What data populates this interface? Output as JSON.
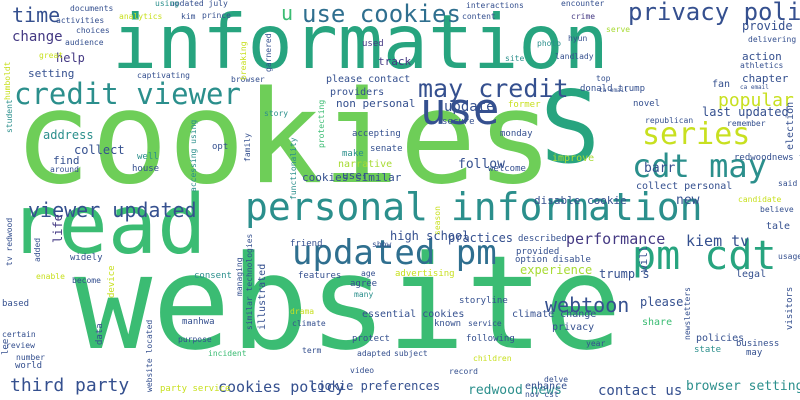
{
  "palette": {
    "background": "#ffffff",
    "colors": [
      "#3bbc73",
      "#27a47f",
      "#2b8f8c",
      "#2f6f8f",
      "#35508f",
      "#443983",
      "#481a6c",
      "#a8db34",
      "#c8e020",
      "#6ece58"
    ]
  },
  "words": [
    {
      "text": "website",
      "color": "#3bbc73"
    },
    {
      "text": "cookies",
      "color": "#6ece58"
    },
    {
      "text": "information",
      "color": "#27a47f"
    },
    {
      "text": "read",
      "color": "#3bbc73"
    },
    {
      "text": "S",
      "color": "#27a47f"
    },
    {
      "text": "personal information",
      "color": "#2b8f8c"
    },
    {
      "text": "credit viewer",
      "color": "#2b8f8c"
    },
    {
      "text": "updated pm",
      "color": "#2f6f8f"
    },
    {
      "text": "pm cdt",
      "color": "#27a47f"
    },
    {
      "text": "cdt may",
      "color": "#2b8f8c"
    },
    {
      "text": "use",
      "color": "#35508f"
    },
    {
      "text": "may credit",
      "color": "#35508f"
    },
    {
      "text": "use cookies",
      "color": "#2f6f8f"
    },
    {
      "text": "series",
      "color": "#c8e020"
    },
    {
      "text": "privacy policy",
      "color": "#35508f"
    },
    {
      "text": "viewer updated",
      "color": "#35508f"
    },
    {
      "text": "u",
      "color": "#3bbc73"
    },
    {
      "text": "time",
      "color": "#35508f"
    },
    {
      "text": "third party",
      "color": "#35508f"
    },
    {
      "text": "cookies policy",
      "color": "#35508f"
    },
    {
      "text": "webtoon",
      "color": "#35508f"
    },
    {
      "text": "popular",
      "color": "#c8e020"
    },
    {
      "text": "performance",
      "color": "#443983"
    },
    {
      "text": "kiem tv",
      "color": "#35508f"
    },
    {
      "text": "contact us",
      "color": "#35508f"
    },
    {
      "text": "browser settings",
      "color": "#2b8f8c"
    },
    {
      "text": "redwood news",
      "color": "#2b8f8c"
    },
    {
      "text": "change",
      "color": "#443983"
    },
    {
      "text": "update",
      "color": "#35508f"
    },
    {
      "text": "follow",
      "color": "#35508f"
    },
    {
      "text": "high school",
      "color": "#35508f"
    },
    {
      "text": "practices",
      "color": "#35508f"
    },
    {
      "text": "experience",
      "color": "#a8db34"
    },
    {
      "text": "new",
      "color": "#35508f"
    },
    {
      "text": "barr",
      "color": "#35508f"
    },
    {
      "text": "last updated",
      "color": "#35508f"
    },
    {
      "text": "provide",
      "color": "#35508f"
    },
    {
      "text": "action",
      "color": "#35508f"
    },
    {
      "text": "chapter",
      "color": "#35508f"
    },
    {
      "text": "collect",
      "color": "#35508f"
    },
    {
      "text": "address",
      "color": "#2b8f8c"
    },
    {
      "text": "find",
      "color": "#35508f"
    },
    {
      "text": "help",
      "color": "#443983"
    },
    {
      "text": "setting",
      "color": "#35508f"
    },
    {
      "text": "non personal",
      "color": "#35508f"
    },
    {
      "text": "providers",
      "color": "#35508f"
    },
    {
      "text": "please contact",
      "color": "#35508f"
    },
    {
      "text": "track",
      "color": "#443983"
    },
    {
      "text": "used",
      "color": "#443983"
    },
    {
      "text": "cookies similar",
      "color": "#35508f"
    },
    {
      "text": "disable cookie",
      "color": "#35508f"
    },
    {
      "text": "collect personal",
      "color": "#35508f"
    },
    {
      "text": "redwoodnews tv",
      "color": "#35508f"
    },
    {
      "text": "improve",
      "color": "#a8db34"
    },
    {
      "text": "user",
      "color": "#35508f"
    },
    {
      "text": "welcome",
      "color": "#35508f"
    },
    {
      "text": "make",
      "color": "#2b8f8c"
    },
    {
      "text": "senate",
      "color": "#35508f"
    },
    {
      "text": "accepting",
      "color": "#35508f"
    },
    {
      "text": "secure",
      "color": "#35508f"
    },
    {
      "text": "narrative",
      "color": "#a8db34"
    },
    {
      "text": "monday",
      "color": "#35508f"
    },
    {
      "text": "novel",
      "color": "#35508f"
    },
    {
      "text": "republican",
      "color": "#35508f"
    },
    {
      "text": "former",
      "color": "#c8e020"
    },
    {
      "text": "donald trump",
      "color": "#35508f"
    },
    {
      "text": "fan",
      "color": "#35508f"
    },
    {
      "text": "top",
      "color": "#35508f"
    },
    {
      "text": "ca email",
      "color": "#35508f"
    },
    {
      "text": "landlady",
      "color": "#35508f"
    },
    {
      "text": "hyun",
      "color": "#35508f"
    },
    {
      "text": "photo",
      "color": "#2b8f8c"
    },
    {
      "text": "site",
      "color": "#2b8f8c"
    },
    {
      "text": "crime",
      "color": "#443983"
    },
    {
      "text": "content",
      "color": "#35508f"
    },
    {
      "text": "interactions",
      "color": "#35508f"
    },
    {
      "text": "encounter",
      "color": "#35508f"
    },
    {
      "text": "documents",
      "color": "#35508f"
    },
    {
      "text": "analytics",
      "color": "#c8e020"
    },
    {
      "text": "updated july",
      "color": "#35508f"
    },
    {
      "text": "using",
      "color": "#2b8f8c"
    },
    {
      "text": "kim",
      "color": "#35508f"
    },
    {
      "text": "prince",
      "color": "#35508f"
    },
    {
      "text": "activities",
      "color": "#35508f"
    },
    {
      "text": "choices",
      "color": "#35508f"
    },
    {
      "text": "audience",
      "color": "#35508f"
    },
    {
      "text": "great",
      "color": "#c8e020"
    },
    {
      "text": "captivating",
      "color": "#35508f"
    },
    {
      "text": "browser",
      "color": "#35508f"
    },
    {
      "text": "garnered",
      "color": "#35508f"
    },
    {
      "text": "delivering",
      "color": "#35508f"
    },
    {
      "text": "athletics",
      "color": "#35508f"
    },
    {
      "text": "serve",
      "color": "#a8db34"
    },
    {
      "text": "ca email",
      "color": "#35508f"
    },
    {
      "text": "remember",
      "color": "#35508f"
    },
    {
      "text": "election",
      "color": "#35508f"
    },
    {
      "text": "story",
      "color": "#2b8f8c"
    },
    {
      "text": "protecting",
      "color": "#3bbc73"
    },
    {
      "text": "functionality",
      "color": "#2b8f8c"
    },
    {
      "text": "family",
      "color": "#35508f"
    },
    {
      "text": "opt",
      "color": "#35508f"
    },
    {
      "text": "accessing using",
      "color": "#2b8f8c"
    },
    {
      "text": "well",
      "color": "#2b8f8c"
    },
    {
      "text": "house",
      "color": "#35508f"
    },
    {
      "text": "around",
      "color": "#35508f"
    },
    {
      "text": "student",
      "color": "#2b8f8c"
    },
    {
      "text": "season",
      "color": "#c8e020"
    },
    {
      "text": "life",
      "color": "#443983"
    },
    {
      "text": "tv redwood",
      "color": "#35508f"
    },
    {
      "text": "added",
      "color": "#35508f"
    },
    {
      "text": "widely",
      "color": "#35508f"
    },
    {
      "text": "enable",
      "color": "#c8e020"
    },
    {
      "text": "become",
      "color": "#35508f"
    },
    {
      "text": "device",
      "color": "#c8e020"
    },
    {
      "text": "consent",
      "color": "#2b8f8c"
    },
    {
      "text": "similar technologies",
      "color": "#35508f"
    },
    {
      "text": "illustrated",
      "color": "#35508f"
    },
    {
      "text": "managing",
      "color": "#35508f"
    },
    {
      "text": "features",
      "color": "#35508f"
    },
    {
      "text": "agree",
      "color": "#35508f"
    },
    {
      "text": "many",
      "color": "#2b8f8c"
    },
    {
      "text": "age",
      "color": "#35508f"
    },
    {
      "text": "friend",
      "color": "#35508f"
    },
    {
      "text": "show",
      "color": "#35508f"
    },
    {
      "text": "advertising",
      "color": "#c8e020"
    },
    {
      "text": "described",
      "color": "#35508f"
    },
    {
      "text": "provided",
      "color": "#35508f"
    },
    {
      "text": "option disable",
      "color": "#35508f"
    },
    {
      "text": "tale",
      "color": "#35508f"
    },
    {
      "text": "candidate",
      "color": "#c8e020"
    },
    {
      "text": "believe",
      "color": "#35508f"
    },
    {
      "text": "said",
      "color": "#35508f"
    },
    {
      "text": "usage",
      "color": "#35508f"
    },
    {
      "text": "legal",
      "color": "#35508f"
    },
    {
      "text": "trump s",
      "color": "#35508f"
    },
    {
      "text": "please",
      "color": "#35508f"
    },
    {
      "text": "will",
      "color": "#35508f"
    },
    {
      "text": "newsletters",
      "color": "#35508f"
    },
    {
      "text": "share",
      "color": "#3bbc73"
    },
    {
      "text": "policies",
      "color": "#35508f"
    },
    {
      "text": "state",
      "color": "#2b8f8c"
    },
    {
      "text": "business",
      "color": "#35508f"
    },
    {
      "text": "visitors",
      "color": "#35508f"
    },
    {
      "text": "storyline",
      "color": "#35508f"
    },
    {
      "text": "essential cookies",
      "color": "#35508f"
    },
    {
      "text": "known",
      "color": "#35508f"
    },
    {
      "text": "service",
      "color": "#35508f"
    },
    {
      "text": "climate change",
      "color": "#35508f"
    },
    {
      "text": "following",
      "color": "#35508f"
    },
    {
      "text": "protect",
      "color": "#35508f"
    },
    {
      "text": "climate",
      "color": "#35508f"
    },
    {
      "text": "drama",
      "color": "#c8e020"
    },
    {
      "text": "manhwa",
      "color": "#35508f"
    },
    {
      "text": "purpose",
      "color": "#35508f"
    },
    {
      "text": "incident",
      "color": "#3bbc73"
    },
    {
      "text": "term",
      "color": "#35508f"
    },
    {
      "text": "adapted",
      "color": "#35508f"
    },
    {
      "text": "subject",
      "color": "#35508f"
    },
    {
      "text": "children",
      "color": "#c8e020"
    },
    {
      "text": "year",
      "color": "#35508f"
    },
    {
      "text": "video",
      "color": "#35508f"
    },
    {
      "text": "record",
      "color": "#35508f"
    },
    {
      "text": "delve",
      "color": "#35508f"
    },
    {
      "text": "enhance",
      "color": "#35508f"
    },
    {
      "text": "nov cst",
      "color": "#35508f"
    },
    {
      "text": "world",
      "color": "#35508f"
    },
    {
      "text": "may",
      "color": "#35508f"
    },
    {
      "text": "data",
      "color": "#35508f"
    },
    {
      "text": "number",
      "color": "#35508f"
    },
    {
      "text": "review",
      "color": "#35508f"
    },
    {
      "text": "certain",
      "color": "#35508f"
    },
    {
      "text": "based",
      "color": "#35508f"
    },
    {
      "text": "lee",
      "color": "#35508f"
    },
    {
      "text": "website located",
      "color": "#35508f"
    },
    {
      "text": "party service",
      "color": "#c8e020"
    },
    {
      "text": "cookie preferences",
      "color": "#35508f"
    },
    {
      "text": "privacy",
      "color": "#35508f"
    },
    {
      "text": "humboldt",
      "color": "#c8e020"
    },
    {
      "text": "breaking",
      "color": "#c8e020"
    }
  ]
}
